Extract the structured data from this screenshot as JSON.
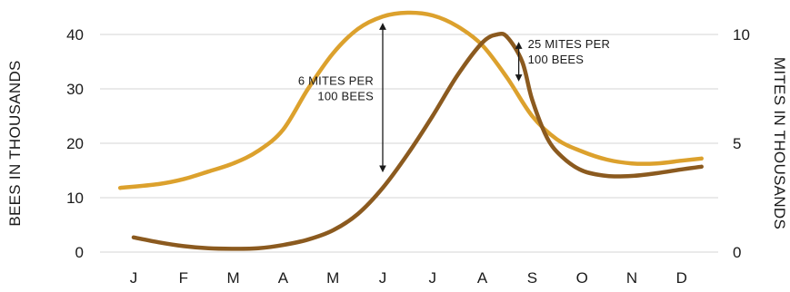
{
  "chart_data": {
    "type": "line",
    "title": "",
    "categories": [
      "J",
      "F",
      "M",
      "A",
      "M",
      "J",
      "J",
      "A",
      "S",
      "O",
      "N",
      "D"
    ],
    "left_axis": {
      "label": "BEES IN THOUSANDS",
      "ticks": [
        0,
        10,
        20,
        30,
        40
      ],
      "range": [
        0,
        40
      ]
    },
    "right_axis": {
      "label": "MITES IN THOUSANDS",
      "ticks": [
        0,
        5,
        10
      ],
      "range": [
        0,
        10
      ]
    },
    "grid": true,
    "series": [
      {
        "color": "#dca12d",
        "axis": "left",
        "x": [
          -0.27,
          0.5,
          1.0,
          1.5,
          2.0,
          2.5,
          3.0,
          3.5,
          4.0,
          4.5,
          5.0,
          5.5,
          6.0,
          6.5,
          7.0,
          7.5,
          8.0,
          8.5,
          9.0,
          9.5,
          10.0,
          10.5,
          11.0,
          11.4
        ],
        "values": [
          11.8,
          12.5,
          13.4,
          14.8,
          16.3,
          18.6,
          22.5,
          30.0,
          36.5,
          41.0,
          43.3,
          44.0,
          43.5,
          41.5,
          38.0,
          32.0,
          25.0,
          20.7,
          18.5,
          17.0,
          16.3,
          16.3,
          16.8,
          17.2
        ]
      },
      {
        "color": "#8b5a1f",
        "axis": "left",
        "x": [
          0.0,
          0.5,
          1.0,
          1.5,
          2.0,
          2.5,
          3.0,
          3.5,
          4.0,
          4.5,
          5.0,
          5.5,
          6.0,
          6.5,
          7.0,
          7.3,
          7.5,
          7.8,
          8.0,
          8.3,
          8.6,
          9.0,
          9.5,
          10.0,
          10.5,
          11.0,
          11.4
        ],
        "values": [
          2.7,
          1.8,
          1.1,
          0.7,
          0.6,
          0.7,
          1.3,
          2.3,
          4.0,
          7.0,
          11.8,
          18.0,
          25.0,
          32.5,
          38.5,
          40.0,
          39.5,
          35.0,
          28.0,
          21.0,
          17.5,
          15.0,
          14.0,
          14.0,
          14.5,
          15.2,
          15.7
        ]
      }
    ],
    "annotations": [
      {
        "lines": [
          "6 MITES PER",
          "100 BEES"
        ],
        "x": 5.0,
        "y_from": 15.3,
        "y_to": 41.5
      },
      {
        "lines": [
          "25 MITES PER",
          "100 BEES"
        ],
        "x": 7.73,
        "y_from": 32.0,
        "y_to": 38.0
      }
    ]
  }
}
